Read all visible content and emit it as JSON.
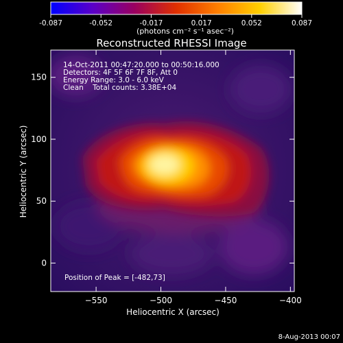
{
  "colorbar": {
    "ticks": [
      "-0.087",
      "-0.052",
      "-0.017",
      "0.017",
      "0.052",
      "0.087"
    ],
    "units": "(photons cm⁻² s⁻¹ asec⁻²)",
    "colormap": [
      "#0000ff",
      "#5a00c8",
      "#9a0060",
      "#e03000",
      "#ff8000",
      "#ffd000",
      "#ffffff"
    ]
  },
  "chart_data": {
    "type": "heatmap",
    "title": "Reconstructed RHESSI Image",
    "xlabel": "Heliocentric X (arcsec)",
    "ylabel": "Heliocentric Y (arcsec)",
    "xlim": [
      -585,
      -397
    ],
    "ylim": [
      -23,
      172
    ],
    "xticks": [
      -550,
      -500,
      -450,
      -400
    ],
    "yticks": [
      0,
      50,
      100,
      150
    ],
    "xtick_labels": [
      "−550",
      "−500",
      "−450",
      "−400"
    ],
    "ytick_labels": [
      "0",
      "50",
      "100",
      "150"
    ],
    "value_range": [
      -0.087,
      0.087
    ],
    "peak": [
      -482,
      73
    ],
    "annotations": [
      "14-Oct-2011 00:47:20.000 to 00:50:16.000",
      "Detectors: 4F 5F 6F 7F 8F, Att 0",
      "Energy Range: 3.0 - 6.0 keV",
      "Clean    Total counts: 3.38E+04"
    ],
    "peak_label": "Position of Peak = [-482,73]"
  },
  "footer": {
    "date": "8-Aug-2013 00:07"
  }
}
